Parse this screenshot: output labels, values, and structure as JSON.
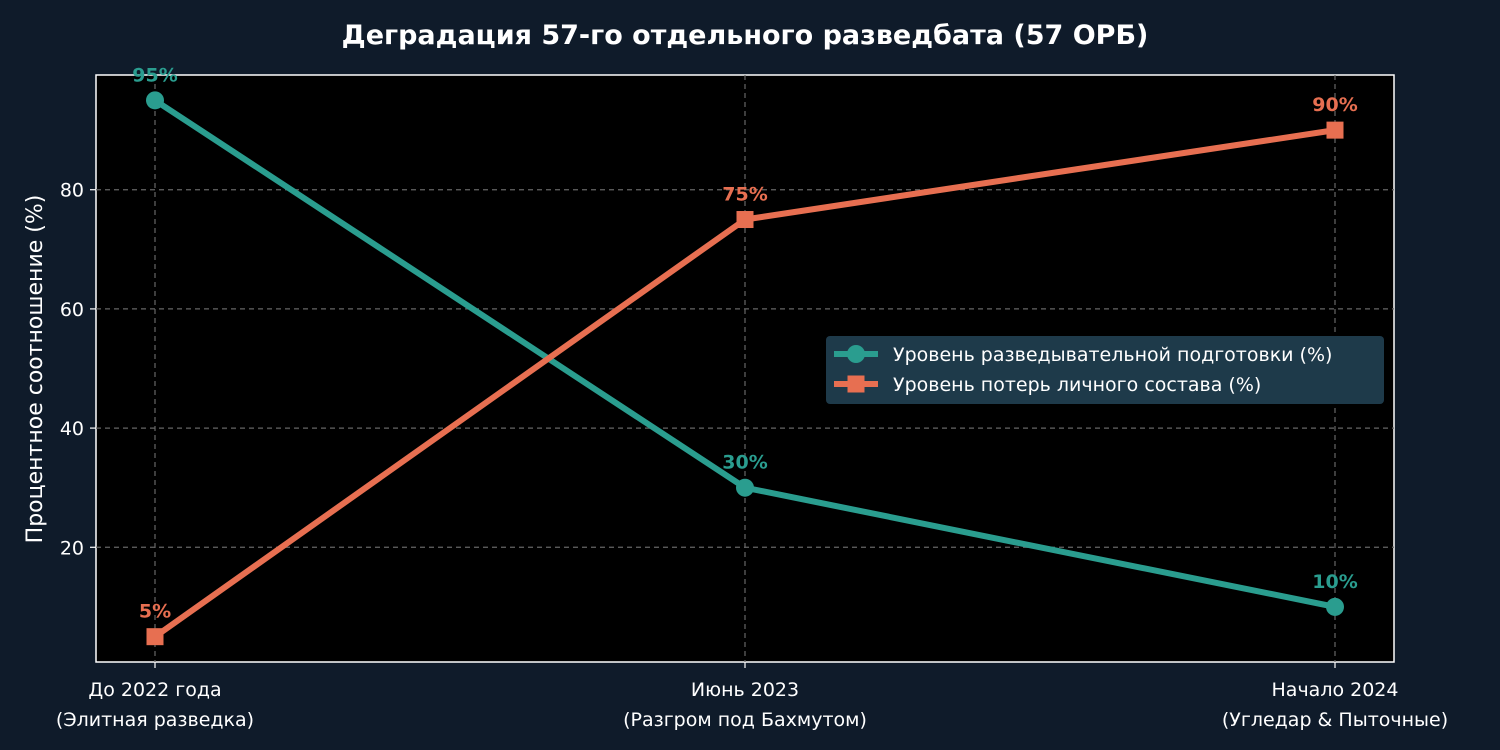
{
  "chart_data": {
    "type": "line",
    "title": "Деградация 57-го отдельного разведбата (57 ОРБ)",
    "ylabel": "Процентное соотношение (%)",
    "xlabel": "",
    "ylim": [
      0,
      100
    ],
    "yticks": [
      20,
      40,
      60,
      80
    ],
    "grid": true,
    "legend_position": "center-right",
    "categories": [
      [
        "До 2022 года",
        "(Элитная разведка)"
      ],
      [
        "Июнь 2023",
        "(Разгром под Бахмутом)"
      ],
      [
        "Начало 2024",
        "(Угледар & Пыточные)"
      ]
    ],
    "series": [
      {
        "name": "Уровень разведывательной подготовки (%)",
        "values": [
          95,
          30,
          10
        ],
        "labels": [
          "95%",
          "30%",
          "10%"
        ],
        "color": "#2a9d8f",
        "marker": "circle"
      },
      {
        "name": "Уровень потерь личного состава (%)",
        "values": [
          5,
          75,
          90
        ],
        "labels": [
          "5%",
          "75%",
          "90%"
        ],
        "color": "#e76f51",
        "marker": "square"
      }
    ],
    "colors": {
      "background": "#0f1b2a",
      "plot_area": "#000000",
      "legend_bg": "#1e3a4a",
      "grid": "#555555",
      "text": "#ffffff"
    }
  }
}
